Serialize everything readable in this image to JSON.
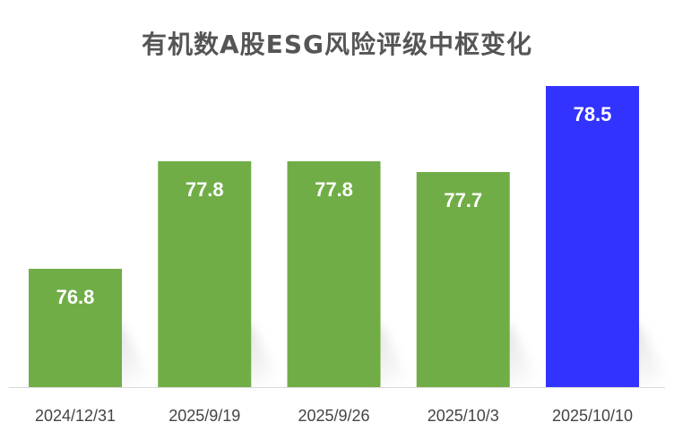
{
  "chart_data": {
    "type": "bar",
    "title": "有机数A股ESG风险评级中枢变化",
    "categories": [
      "2024/12/31",
      "2025/9/19",
      "2025/9/26",
      "2025/10/3",
      "2025/10/10"
    ],
    "values": [
      76.8,
      77.8,
      77.8,
      77.7,
      78.5
    ],
    "data_labels": [
      "76.8",
      "77.8",
      "77.8",
      "77.7",
      "78.5"
    ],
    "ylim": [
      75.7,
      78.8
    ],
    "bar_colors": [
      "#70ad47",
      "#70ad47",
      "#70ad47",
      "#70ad47",
      "#3333ff"
    ],
    "label_color": "#ffffff",
    "axis_color": "#d9d9d9",
    "grid": false,
    "legend": "none"
  }
}
